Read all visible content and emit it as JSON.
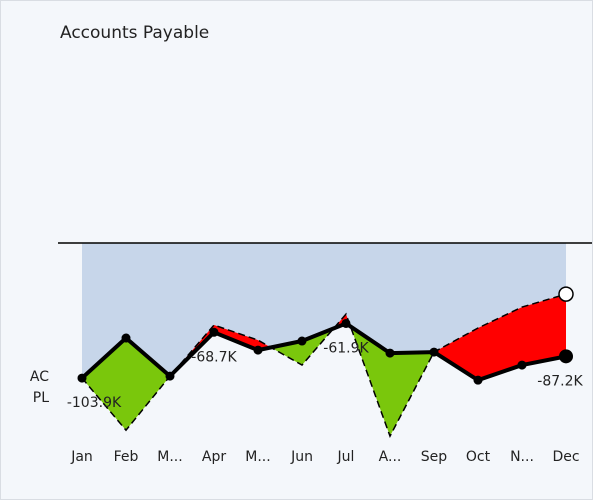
{
  "chart_data": {
    "type": "variance-line",
    "title": "Accounts Payable",
    "categories": [
      "Jan",
      "Feb",
      "M...",
      "Apr",
      "M...",
      "Jun",
      "Jul",
      "A...",
      "Sep",
      "Oct",
      "N...",
      "Dec"
    ],
    "series": [
      {
        "name": "AC",
        "color": "#000000",
        "values": [
          -103.9,
          -73.1,
          -102.4,
          -68.7,
          -82.4,
          -75.4,
          -61.9,
          -84.7,
          -83.9,
          -105.5,
          -93.9,
          -87.2
        ],
        "value_labels": [
          "-103.9K",
          null,
          null,
          "-68.7K",
          null,
          null,
          "-61.9K",
          null,
          null,
          null,
          null,
          "-87.2K"
        ]
      },
      {
        "name": "PL",
        "color": "#000000",
        "values": [
          -103.9,
          -144,
          -102.4,
          -63.1,
          -74.7,
          -93.9,
          -54.7,
          -148.6,
          -83.9,
          -65.4,
          -49.3,
          -39.3
        ]
      }
    ],
    "positive_color": "#7ac70c",
    "negative_color": "#ff0000",
    "area_color": "#c7d6ea",
    "ylim": [
      -150,
      0
    ]
  }
}
